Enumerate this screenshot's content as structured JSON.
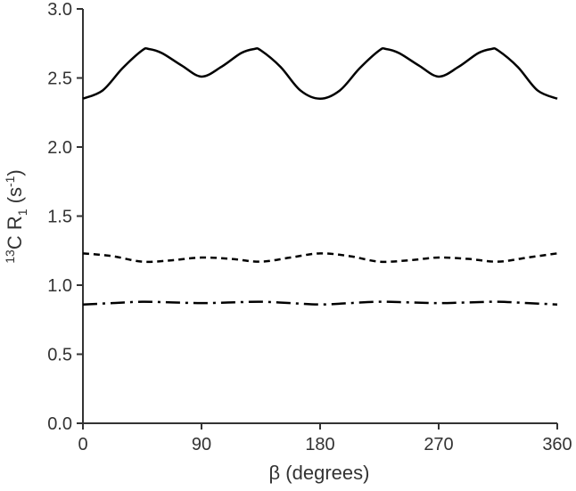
{
  "chart_data": {
    "type": "line",
    "title": "",
    "xlabel": "β (degrees)",
    "ylabel": {
      "sup_mass": "13",
      "base": "C R",
      "sub": "1",
      "units_open": " (s",
      "units_sup": "-1",
      "units_close": ")"
    },
    "xlim": [
      0,
      360
    ],
    "ylim": [
      0,
      3
    ],
    "xticks": [
      0,
      90,
      180,
      270,
      360
    ],
    "yticks": [
      0,
      0.5,
      1,
      1.5,
      2,
      2.5,
      3
    ],
    "xtick_labels": [
      "0",
      "90",
      "180",
      "270",
      "360"
    ],
    "ytick_labels": [
      "0.0",
      "0.5",
      "1.0",
      "1.5",
      "2.0",
      "2.5",
      "3.0"
    ],
    "grid": false,
    "series": [
      {
        "style": "solid",
        "color": "#000000",
        "x": [
          0,
          15,
          30,
          45,
          50,
          60,
          75,
          90,
          105,
          120,
          130,
          135,
          150,
          165,
          180,
          195,
          210,
          225,
          230,
          240,
          255,
          270,
          285,
          300,
          310,
          315,
          330,
          345,
          360
        ],
        "y": [
          2.35,
          2.41,
          2.57,
          2.7,
          2.71,
          2.68,
          2.59,
          2.51,
          2.58,
          2.68,
          2.71,
          2.7,
          2.58,
          2.41,
          2.35,
          2.41,
          2.57,
          2.7,
          2.71,
          2.68,
          2.59,
          2.51,
          2.58,
          2.68,
          2.71,
          2.7,
          2.58,
          2.41,
          2.35
        ]
      },
      {
        "style": "dashed",
        "color": "#000000",
        "x": [
          0,
          22.5,
          45,
          67.5,
          90,
          112.5,
          135,
          157.5,
          180,
          202.5,
          225,
          247.5,
          270,
          292.5,
          315,
          337.5,
          360
        ],
        "y": [
          1.23,
          1.21,
          1.17,
          1.18,
          1.2,
          1.19,
          1.17,
          1.2,
          1.23,
          1.21,
          1.17,
          1.18,
          1.2,
          1.19,
          1.17,
          1.2,
          1.23
        ]
      },
      {
        "style": "dash-dot",
        "color": "#000000",
        "x": [
          0,
          22.5,
          45,
          67.5,
          90,
          112.5,
          135,
          157.5,
          180,
          202.5,
          225,
          247.5,
          270,
          292.5,
          315,
          337.5,
          360
        ],
        "y": [
          0.86,
          0.87,
          0.88,
          0.875,
          0.87,
          0.875,
          0.88,
          0.87,
          0.86,
          0.87,
          0.88,
          0.875,
          0.87,
          0.875,
          0.88,
          0.87,
          0.86
        ]
      }
    ]
  }
}
